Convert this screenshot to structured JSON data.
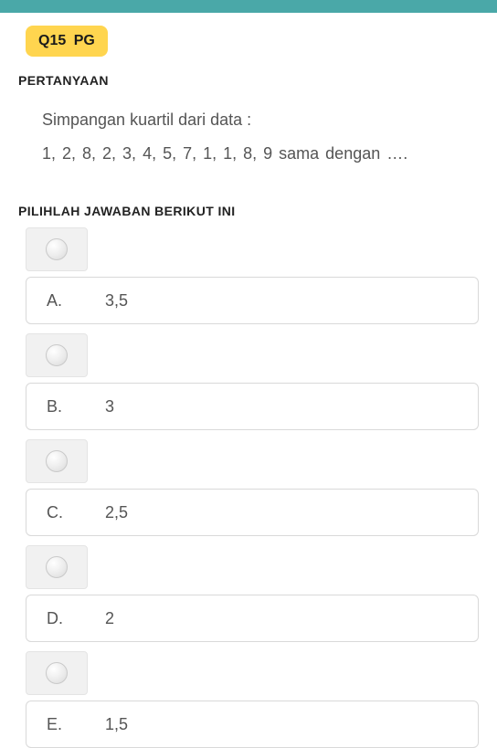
{
  "topbar_color": "#4aa8a8",
  "badge": {
    "qnum": "Q15",
    "qtype": "PG",
    "bg": "#ffd54f"
  },
  "labels": {
    "pertanyaan": "PERTANYAAN",
    "pilih": "PILIHLAH JAWABAN BERIKUT INI"
  },
  "question": {
    "line1": "Simpangan kuartil dari data :",
    "line2": "1, 2, 8, 2, 3, 4, 5, 7, 1, 1, 8, 9 sama dengan ….",
    "text_color": "#555555",
    "fontsize": 18
  },
  "options": [
    {
      "letter": "A.",
      "text": "3,5"
    },
    {
      "letter": "B.",
      "text": "3"
    },
    {
      "letter": "C.",
      "text": "2,5"
    },
    {
      "letter": "D.",
      "text": "2"
    },
    {
      "letter": "E.",
      "text": "1,5"
    }
  ],
  "option_style": {
    "border_color": "#d9d9d9",
    "radio_bg": "#f1f1f1",
    "radio_border": "#e4e4e4",
    "circle_border": "#c9c9c9"
  }
}
